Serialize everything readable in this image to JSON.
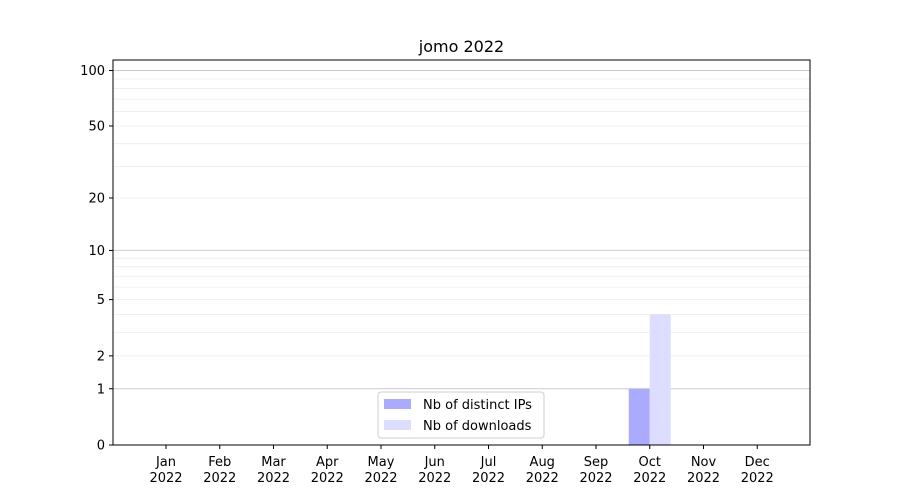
{
  "chart_data": {
    "type": "bar",
    "title": "jomo 2022",
    "xlabel": "",
    "ylabel": "",
    "yscale": "log(1+y)",
    "ylim": [
      0,
      114
    ],
    "yticks": [
      0,
      1,
      2,
      5,
      10,
      20,
      50,
      100
    ],
    "ytick_labels": [
      "0",
      "1",
      "2",
      "5",
      "10",
      "20",
      "50",
      "100"
    ],
    "grid": true,
    "legend_position": "lower center",
    "categories": [
      "Jan\n2022",
      "Feb\n2022",
      "Mar\n2022",
      "Apr\n2022",
      "May\n2022",
      "Jun\n2022",
      "Jul\n2022",
      "Aug\n2022",
      "Sep\n2022",
      "Oct\n2022",
      "Nov\n2022",
      "Dec\n2022"
    ],
    "series": [
      {
        "name": "Nb of distinct IPs",
        "color": "#aaaaff",
        "values": [
          0,
          0,
          0,
          0,
          0,
          0,
          0,
          0,
          0,
          1,
          0,
          0
        ]
      },
      {
        "name": "Nb of downloads",
        "color": "#ddddff",
        "values": [
          0,
          0,
          0,
          0,
          0,
          0,
          0,
          0,
          0,
          4,
          0,
          0
        ]
      }
    ]
  }
}
